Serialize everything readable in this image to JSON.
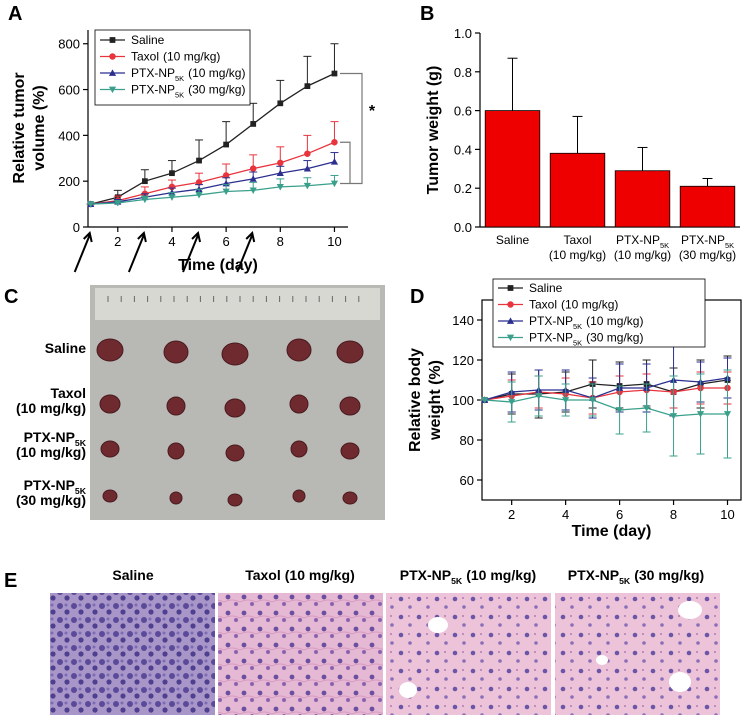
{
  "panels": [
    "A",
    "B",
    "C",
    "D",
    "E"
  ],
  "chart_data": [
    {
      "type": "line",
      "xlabel": "Time (day)",
      "ylabel": [
        "Relative tumor",
        "volume (%)"
      ],
      "x": [
        1,
        2,
        3,
        4,
        5,
        6,
        7,
        8,
        9,
        10
      ],
      "xlim": [
        0.9,
        10.5
      ],
      "xticks": [
        2,
        4,
        6,
        8,
        10
      ],
      "ylim": [
        0,
        860
      ],
      "yticks": [
        0,
        200,
        400,
        600,
        800
      ],
      "frame": "open",
      "error_direction": "up",
      "dosing_days": [
        1,
        3,
        5,
        7
      ],
      "annotation": "*",
      "series": [
        {
          "name": {
            "text": "Saline"
          },
          "color": "#222222",
          "marker": "square",
          "values": [
            100,
            130,
            200,
            235,
            290,
            360,
            450,
            540,
            615,
            670
          ],
          "errors": [
            0,
            30,
            50,
            55,
            90,
            100,
            90,
            100,
            130,
            130
          ]
        },
        {
          "name": {
            "text": "Taxol",
            "dose": "(10 mg/kg)"
          },
          "color": "#e8343c",
          "marker": "circle",
          "values": [
            100,
            115,
            145,
            175,
            195,
            225,
            255,
            280,
            320,
            370
          ],
          "errors": [
            0,
            20,
            30,
            30,
            40,
            50,
            60,
            70,
            80,
            90
          ]
        },
        {
          "name": {
            "text": "PTX-NP",
            "sub": "5K",
            "dose": "(10 mg/kg)"
          },
          "color": "#2b2f8f",
          "marker": "triangle-up",
          "values": [
            100,
            110,
            130,
            150,
            165,
            190,
            210,
            235,
            255,
            285
          ],
          "errors": [
            0,
            10,
            15,
            20,
            20,
            25,
            30,
            30,
            35,
            40
          ]
        },
        {
          "name": {
            "text": "PTX-NP",
            "sub": "5K",
            "dose": "(30 mg/kg)"
          },
          "color": "#3aa08c",
          "marker": "triangle-down",
          "values": [
            100,
            105,
            120,
            130,
            140,
            155,
            160,
            175,
            180,
            190
          ],
          "errors": [
            0,
            10,
            15,
            20,
            25,
            30,
            35,
            35,
            35,
            35
          ]
        }
      ]
    },
    {
      "type": "bar",
      "ylabel": "Tumor weight (g)",
      "categories": [
        {
          "text": "Saline"
        },
        {
          "text": "Taxol",
          "dose": "(10 mg/kg)"
        },
        {
          "text": "PTX-NP",
          "sub": "5K",
          "dose": "(10 mg/kg)"
        },
        {
          "text": "PTX-NP",
          "sub": "5K",
          "dose": "(30 mg/kg)"
        }
      ],
      "values": [
        0.6,
        0.38,
        0.29,
        0.21
      ],
      "errors": [
        0.27,
        0.19,
        0.12,
        0.04
      ],
      "color": "#ee0000",
      "ylim": [
        0,
        1
      ],
      "yticks": [
        {
          "value": 0,
          "label": "0.0"
        },
        0.2,
        0.4,
        0.6,
        0.8,
        {
          "value": 1,
          "label": "1.0"
        }
      ]
    },
    {
      "type": "line",
      "xlabel": "Time (day)",
      "ylabel": [
        "Relative body",
        "weight (%)"
      ],
      "x": [
        1,
        2,
        3,
        4,
        5,
        6,
        7,
        8,
        9,
        10
      ],
      "xlim": [
        0.9,
        10.5
      ],
      "xticks": [
        2,
        4,
        6,
        8,
        10
      ],
      "ylim": [
        50,
        150
      ],
      "yticks": [
        60,
        80,
        100,
        120,
        140
      ],
      "frame": "box",
      "error_direction": "both",
      "series": [
        {
          "name": {
            "text": "Saline"
          },
          "color": "#222222",
          "marker": "square",
          "values": [
            100,
            103,
            103,
            104,
            108,
            107,
            108,
            104,
            108,
            110
          ],
          "errors": [
            0,
            10,
            12,
            10,
            12,
            12,
            12,
            12,
            12,
            12
          ]
        },
        {
          "name": {
            "text": "Taxol",
            "dose": "(10 mg/kg)"
          },
          "color": "#e8343c",
          "marker": "circle",
          "values": [
            100,
            102,
            104,
            103,
            101,
            104,
            105,
            104,
            106,
            106
          ],
          "errors": [
            0,
            8,
            8,
            8,
            8,
            8,
            8,
            8,
            8,
            8
          ]
        },
        {
          "name": {
            "text": "PTX-NP",
            "sub": "5K",
            "dose": "(10 mg/kg)"
          },
          "color": "#2b2f8f",
          "marker": "triangle-up",
          "values": [
            100,
            104,
            105,
            105,
            101,
            106,
            106,
            110,
            109,
            111
          ],
          "errors": [
            0,
            10,
            10,
            10,
            10,
            12,
            12,
            18,
            10,
            10
          ]
        },
        {
          "name": {
            "text": "PTX-NP",
            "sub": "5K",
            "dose": "(30 mg/kg)"
          },
          "color": "#3aa08c",
          "marker": "triangle-down",
          "values": [
            100,
            99,
            102,
            100,
            100,
            95,
            96,
            92,
            93,
            93
          ],
          "errors": [
            0,
            10,
            10,
            8,
            8,
            12,
            12,
            20,
            20,
            22
          ]
        }
      ]
    }
  ],
  "photo": {
    "labels": [
      {
        "text": "Saline"
      },
      {
        "text": "Taxol",
        "dose": "(10 mg/kg)"
      },
      {
        "text": "PTX-NP",
        "sub": "5K",
        "dose": "(10 mg/kg)"
      },
      {
        "text": "PTX-NP",
        "sub": "5K",
        "dose": "(30 mg/kg)"
      }
    ]
  },
  "histology": {
    "titles": [
      {
        "text": "Saline"
      },
      {
        "text": "Taxol",
        "dose": "(10 mg/kg)"
      },
      {
        "text": "PTX-NP",
        "sub": "5K",
        "dose": "(10 mg/kg)"
      },
      {
        "text": "PTX-NP",
        "sub": "5K",
        "dose": "(30 mg/kg)"
      }
    ]
  }
}
